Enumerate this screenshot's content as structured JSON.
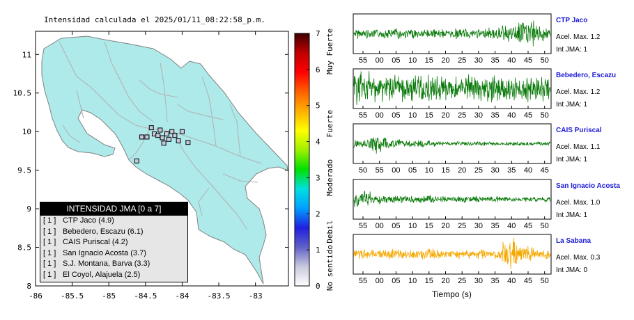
{
  "map_title": "Intensidad calculada el 2025/01/11_08:22:58_p.m.",
  "colorbar": {
    "ticks": [
      "0",
      "1",
      "2",
      "3",
      "4",
      "5",
      "6",
      "7"
    ],
    "labels": [
      "No sentido",
      "Debil",
      "Moderado",
      "Fuerte",
      "Muy Fuerte"
    ],
    "colors": [
      "#ffffff",
      "#c8c8dc",
      "#6060c8",
      "#2020e0",
      "#00a0ff",
      "#00e0e0",
      "#00e000",
      "#a0f000",
      "#ffff00",
      "#ffb000",
      "#ff6000",
      "#ff0000",
      "#c00000",
      "#400000"
    ]
  },
  "legend": {
    "title": "INTENSIDAD JMA [0 a 7]",
    "rows": [
      {
        "level": "[ 1 ]",
        "station": "CTP Jaco (4.9)"
      },
      {
        "level": "[ 1 ]",
        "station": "Bebedero, Escazu (6.1)"
      },
      {
        "level": "[ 1 ]",
        "station": "CAIS Puriscal (4.2)"
      },
      {
        "level": "[ 1 ]",
        "station": "San Ignacio Acosta (3.7)"
      },
      {
        "level": "[ 1 ]",
        "station": "S.J. Montana, Barva (3.3)"
      },
      {
        "level": "[ 1 ]",
        "station": "El Coyol, Alajuela (2.5)"
      }
    ]
  },
  "stations": [
    {
      "name": "CTP Jaco",
      "acel": "Acel. Max. 1.2",
      "int": "Int JMA: 1",
      "color": "#0a7a0a",
      "ticks": [
        "55",
        "00",
        "05",
        "10",
        "15",
        "20",
        "25",
        "30",
        "35",
        "40",
        "45",
        "50"
      ]
    },
    {
      "name": "Bebedero, Escazu",
      "acel": "Acel. Max. 1.2",
      "int": "Int JMA: 1",
      "color": "#0a7a0a",
      "ticks": [
        "55",
        "00",
        "05",
        "10",
        "15",
        "20",
        "25",
        "30",
        "35",
        "40",
        "45",
        "50"
      ]
    },
    {
      "name": "CAIS Puriscal",
      "acel": "Acel. Max. 1.1",
      "int": "Int JMA: 1",
      "color": "#0a7a0a",
      "ticks": [
        "50",
        "55",
        "00",
        "05",
        "10",
        "15",
        "20",
        "25",
        "30",
        "35",
        "40",
        "45"
      ]
    },
    {
      "name": "San Ignacio Acosta",
      "acel": "Acel. Max. 1.0",
      "int": "Int JMA: 1",
      "color": "#0a7a0a",
      "ticks": [
        "55",
        "00",
        "05",
        "10",
        "15",
        "20",
        "25",
        "30",
        "35",
        "40",
        "45",
        "50"
      ]
    },
    {
      "name": "La Sabana",
      "acel": "Acel. Max. 0.3",
      "int": "Int JMA: 0",
      "color": "#f5a800",
      "ticks": [
        "55",
        "00",
        "05",
        "10",
        "15",
        "20",
        "25",
        "30",
        "35",
        "40",
        "45",
        "50"
      ]
    }
  ],
  "traces_xlabel": "Tiempo (s)",
  "chart_data": [
    {
      "type": "scatter",
      "title": "Intensidad calculada el 2025/01/11_08:22:58_p.m.",
      "xlabel": "",
      "ylabel": "",
      "xlim": [
        -86,
        -82.55
      ],
      "ylim": [
        8,
        11.3
      ],
      "x_ticks": [
        "-86",
        "-85.5",
        "-85",
        "-84.5",
        "-84",
        "-83.5",
        "-83"
      ],
      "y_ticks": [
        "8",
        "8.5",
        "9",
        "9.5",
        "10",
        "10.5",
        "11"
      ],
      "points": [
        {
          "x": -84.55,
          "y": 9.93
        },
        {
          "x": -84.48,
          "y": 9.93
        },
        {
          "x": -84.42,
          "y": 10.05
        },
        {
          "x": -84.38,
          "y": 9.97
        },
        {
          "x": -84.33,
          "y": 9.95
        },
        {
          "x": -84.3,
          "y": 10.02
        },
        {
          "x": -84.27,
          "y": 9.92
        },
        {
          "x": -84.25,
          "y": 9.85
        },
        {
          "x": -84.21,
          "y": 9.97
        },
        {
          "x": -84.18,
          "y": 9.9
        },
        {
          "x": -84.14,
          "y": 10.0
        },
        {
          "x": -84.1,
          "y": 9.95
        },
        {
          "x": -84.05,
          "y": 9.88
        },
        {
          "x": -84.0,
          "y": 10.0
        },
        {
          "x": -83.92,
          "y": 9.86
        },
        {
          "x": -84.62,
          "y": 9.62
        }
      ]
    },
    {
      "type": "line",
      "xlabel": "Tiempo (s)",
      "ylabel": "",
      "series": [
        {
          "name": "CTP Jaco",
          "envelope": [
            0.3,
            0.3,
            0.35,
            0.3,
            0.3,
            0.25,
            0.3,
            0.3,
            0.35,
            0.5,
            0.9,
            0.5
          ]
        },
        {
          "name": "Bebedero, Escazu",
          "envelope": [
            1.0,
            0.85,
            0.8,
            0.8,
            0.8,
            0.8,
            0.8,
            0.8,
            0.8,
            0.8,
            0.8,
            0.8
          ]
        },
        {
          "name": "CAIS Puriscal",
          "envelope": [
            0.3,
            0.6,
            0.3,
            0.25,
            0.2,
            0.15,
            0.15,
            0.15,
            0.12,
            0.12,
            0.12,
            0.12
          ]
        },
        {
          "name": "San Ignacio Acosta",
          "envelope": [
            0.5,
            0.3,
            0.25,
            0.25,
            0.25,
            0.2,
            0.2,
            0.2,
            0.2,
            0.15,
            0.15,
            0.15
          ]
        },
        {
          "name": "La Sabana",
          "envelope": [
            0.3,
            0.3,
            0.3,
            0.3,
            0.35,
            0.3,
            0.3,
            0.35,
            0.3,
            0.9,
            0.5,
            0.3
          ]
        }
      ]
    }
  ]
}
